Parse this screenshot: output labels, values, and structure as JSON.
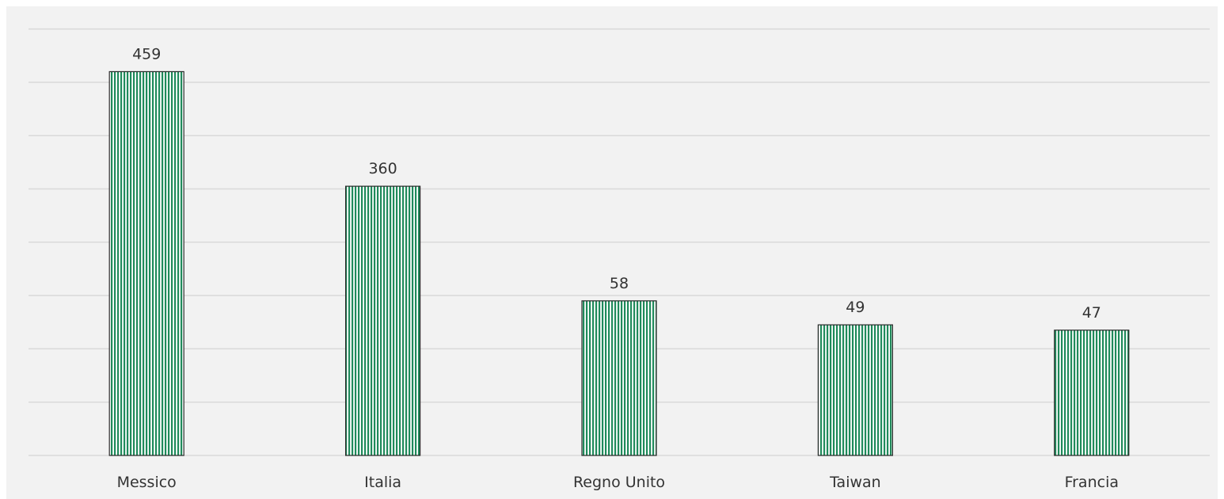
{
  "chart_data": {
    "type": "bar",
    "categories": [
      "Messico",
      "Italia",
      "Regno Unito",
      "Taiwan",
      "Francia"
    ],
    "data_labels": [
      "459",
      "360",
      "58",
      "49",
      "47"
    ],
    "series": [
      {
        "values": [
          459,
          360,
          58,
          49,
          47
        ],
        "color": "#1f8a5b",
        "pattern": "vertical-stripes"
      }
    ],
    "bar_heights_in_grid_units": [
      7.2,
      5.05,
      2.9,
      2.45,
      2.35
    ],
    "gridline_count": 9,
    "title": "",
    "xlabel": "",
    "ylabel": "",
    "grid": true,
    "legend": "none"
  }
}
